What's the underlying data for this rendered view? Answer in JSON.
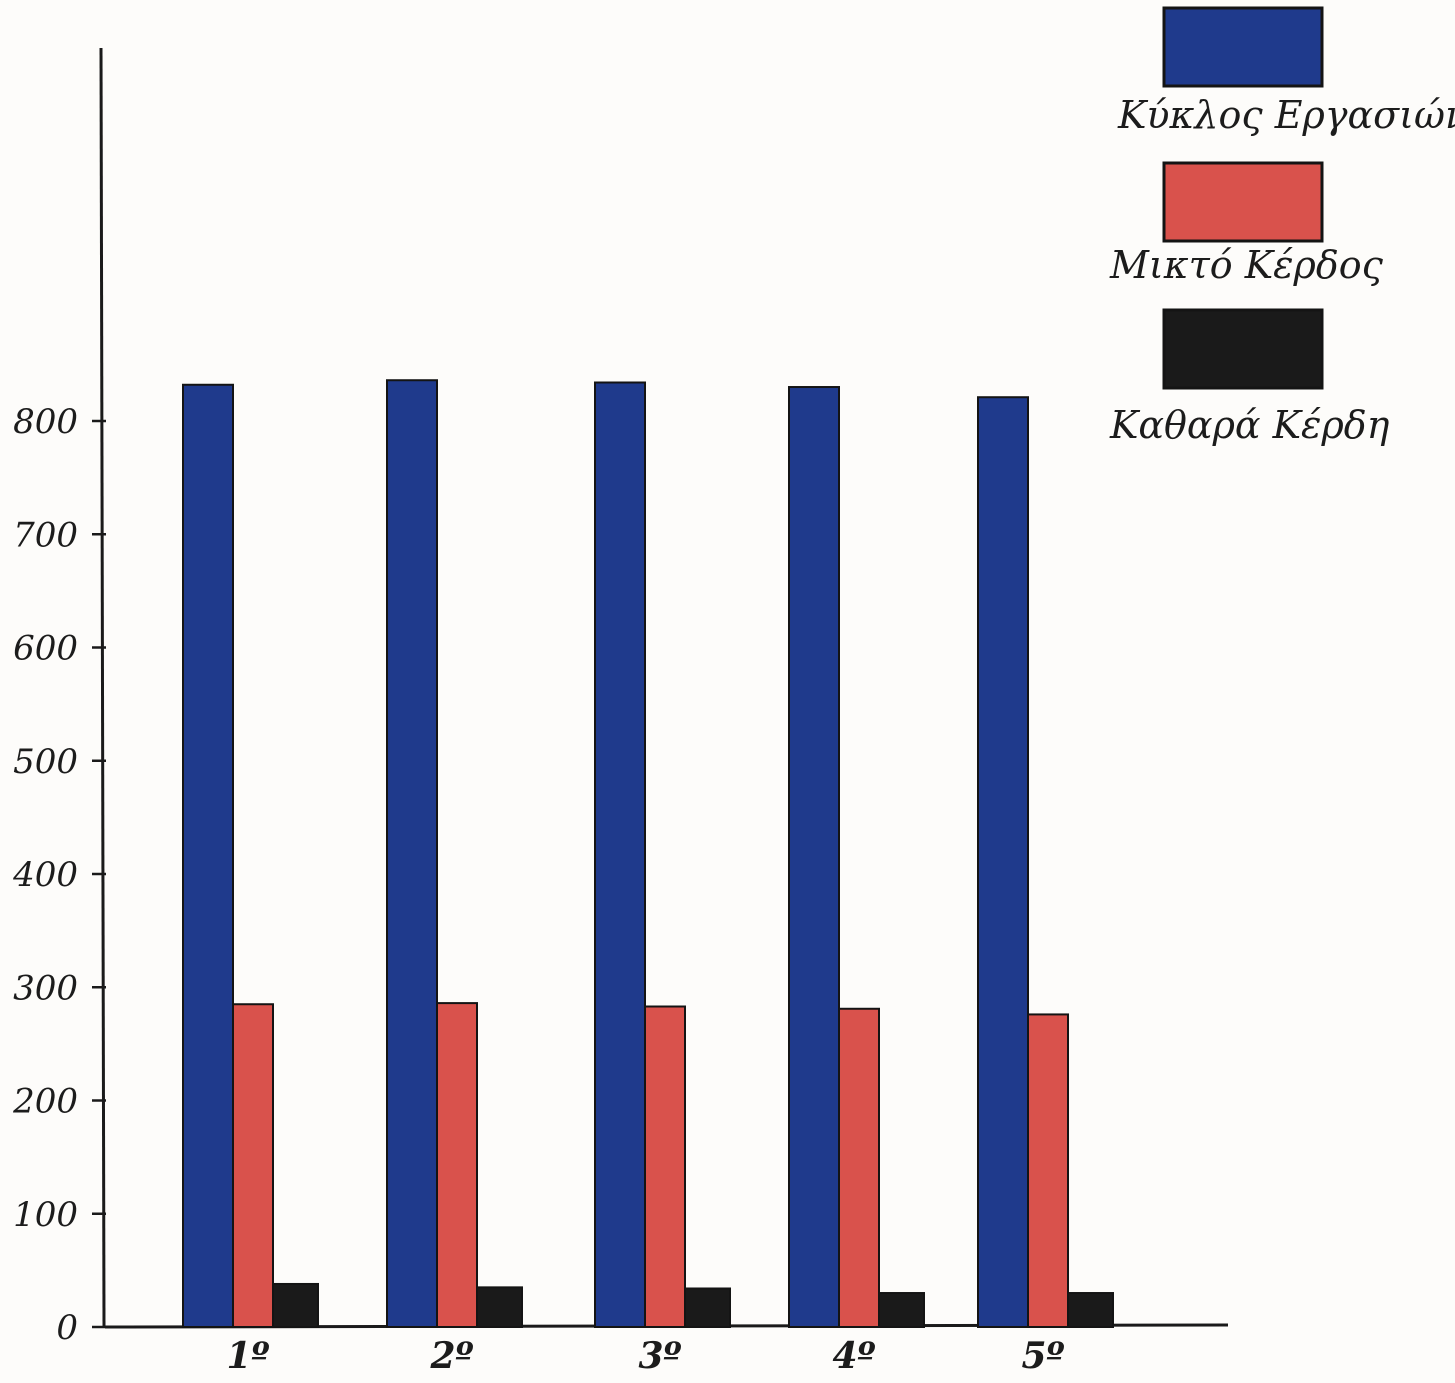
{
  "chart_data": {
    "type": "bar",
    "title": "",
    "xlabel": "",
    "ylabel": "",
    "categories": [
      "1º",
      "2º",
      "3º",
      "4º",
      "5º"
    ],
    "ylim": [
      0,
      800
    ],
    "yticks": [
      0,
      100,
      200,
      300,
      400,
      500,
      600,
      700,
      800
    ],
    "grid": false,
    "legend_position": "top-right",
    "series": [
      {
        "name": "Κύκλος Εργασιών",
        "color": "#1f3a8c",
        "values": [
          832,
          836,
          834,
          830,
          821
        ]
      },
      {
        "name": "Μικτό Κέρδος",
        "color": "#d9524c",
        "values": [
          285,
          286,
          283,
          281,
          276
        ]
      },
      {
        "name": "Καθαρά Κέρδη",
        "color": "#1a1a1a",
        "values": [
          38,
          35,
          34,
          30,
          30
        ]
      }
    ]
  }
}
